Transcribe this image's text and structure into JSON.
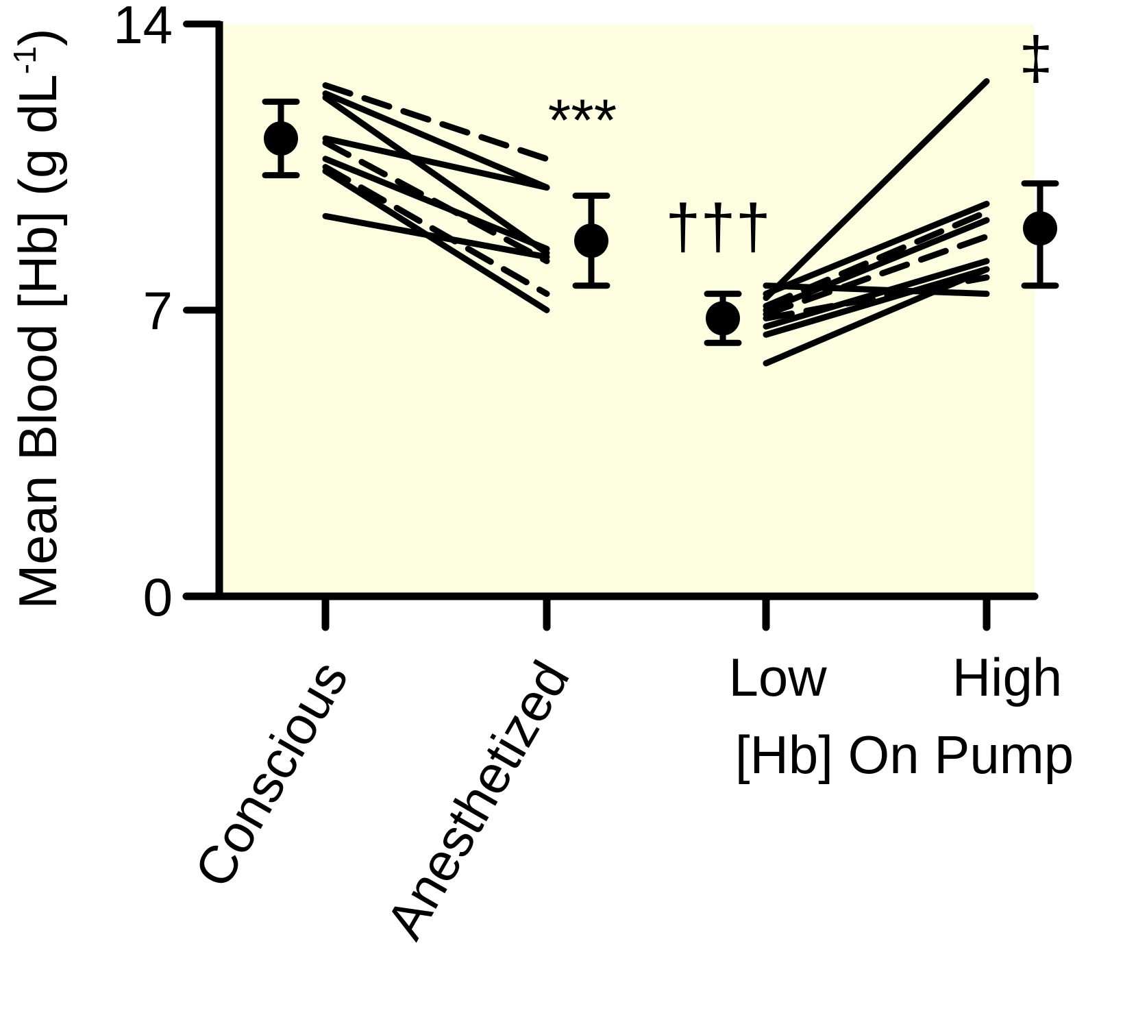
{
  "chart_data": {
    "type": "line",
    "ylabel": "Mean Blood [Hb] (g dL",
    "ylabel_superscript": "-1",
    "ylabel_close": ")",
    "ylim": [
      0,
      14
    ],
    "y_ticks": [
      "0",
      "7",
      "14"
    ],
    "x_tick_labels": [
      "Conscious",
      "Anesthetized",
      "Low",
      "High"
    ],
    "x_group_label": "[Hb] On Pump",
    "background_color": "#fdfde0",
    "line_color": "#000000",
    "annotations": [
      {
        "text": "***",
        "near": "Anesthetized"
      },
      {
        "text": "†††",
        "near": "Low"
      },
      {
        "text": "‡",
        "near": "High"
      }
    ],
    "means": [
      {
        "label": "Conscious",
        "mean": 11.2,
        "lower": 10.3,
        "upper": 12.1
      },
      {
        "label": "Anesthetized",
        "mean": 8.7,
        "lower": 7.6,
        "upper": 9.8
      },
      {
        "label": "Low",
        "mean": 6.8,
        "lower": 6.2,
        "upper": 7.4
      },
      {
        "label": "High",
        "mean": 9.0,
        "lower": 7.6,
        "upper": 10.1
      }
    ],
    "individuals_conscious_to_anesthetized": [
      {
        "x": [
          "Conscious",
          "Anesthetized"
        ],
        "y": [
          12.5,
          10.7
        ],
        "style": "dashed"
      },
      {
        "x": [
          "Conscious",
          "Anesthetized"
        ],
        "y": [
          12.3,
          10.0
        ],
        "style": "solid"
      },
      {
        "x": [
          "Conscious",
          "Anesthetized"
        ],
        "y": [
          12.2,
          8.4
        ],
        "style": "solid"
      },
      {
        "x": [
          "Conscious",
          "Anesthetized"
        ],
        "y": [
          11.2,
          10.0
        ],
        "style": "solid"
      },
      {
        "x": [
          "Conscious",
          "Anesthetized"
        ],
        "y": [
          11.1,
          8.2
        ],
        "style": "dashed"
      },
      {
        "x": [
          "Conscious",
          "Anesthetized"
        ],
        "y": [
          10.7,
          8.5
        ],
        "style": "solid"
      },
      {
        "x": [
          "Conscious",
          "Anesthetized"
        ],
        "y": [
          10.5,
          7.4
        ],
        "style": "dashed"
      },
      {
        "x": [
          "Conscious",
          "Anesthetized"
        ],
        "y": [
          10.4,
          7.0
        ],
        "style": "solid"
      },
      {
        "x": [
          "Conscious",
          "Anesthetized"
        ],
        "y": [
          9.3,
          8.3
        ],
        "style": "solid"
      }
    ],
    "individuals_low_to_high": [
      {
        "x": [
          "Low",
          "High"
        ],
        "y": [
          7.3,
          12.6
        ],
        "style": "solid"
      },
      {
        "x": [
          "Low",
          "High"
        ],
        "y": [
          7.6,
          7.4
        ],
        "style": "solid"
      },
      {
        "x": [
          "Low",
          "High"
        ],
        "y": [
          7.4,
          9.6
        ],
        "style": "solid"
      },
      {
        "x": [
          "Low",
          "High"
        ],
        "y": [
          7.1,
          9.4
        ],
        "style": "dashed"
      },
      {
        "x": [
          "Low",
          "High"
        ],
        "y": [
          7.0,
          9.2
        ],
        "style": "solid"
      },
      {
        "x": [
          "Low",
          "High"
        ],
        "y": [
          6.9,
          8.8
        ],
        "style": "dashed"
      },
      {
        "x": [
          "Low",
          "High"
        ],
        "y": [
          6.6,
          8.2
        ],
        "style": "solid"
      },
      {
        "x": [
          "Low",
          "High"
        ],
        "y": [
          6.4,
          8.0
        ],
        "style": "solid"
      },
      {
        "x": [
          "Low",
          "High"
        ],
        "y": [
          6.8,
          7.8
        ],
        "style": "dashed"
      },
      {
        "x": [
          "Low",
          "High"
        ],
        "y": [
          5.7,
          8.0
        ],
        "style": "solid"
      }
    ]
  }
}
